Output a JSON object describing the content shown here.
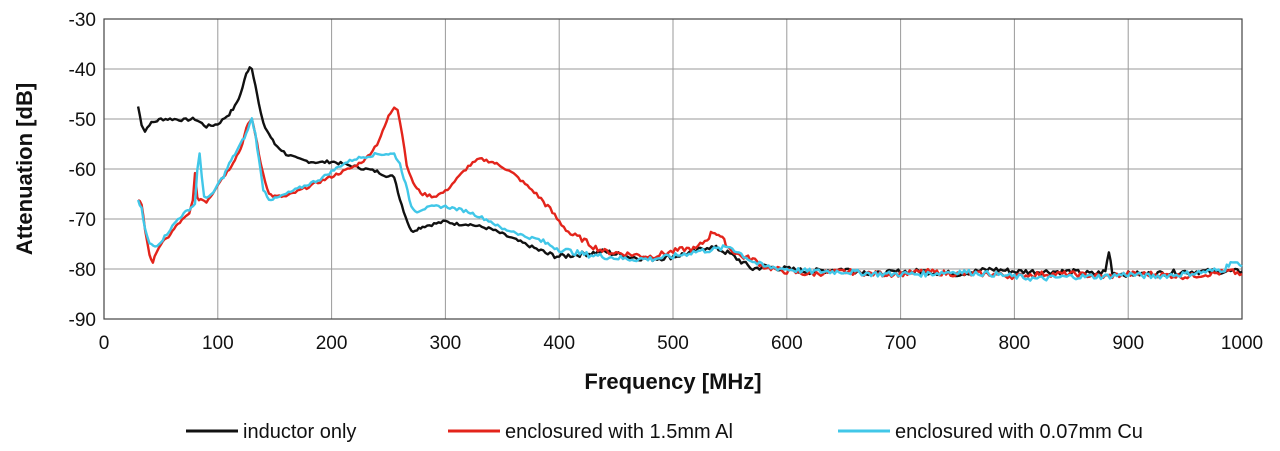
{
  "chart_data": {
    "type": "line",
    "title": "",
    "xlabel": "Frequency [MHz]",
    "ylabel": "Attenuation [dB]",
    "xlim": [
      0,
      1000
    ],
    "ylim": [
      -90,
      -30
    ],
    "xticks": [
      0,
      100,
      200,
      300,
      400,
      500,
      600,
      700,
      800,
      900,
      1000
    ],
    "yticks": [
      -30,
      -40,
      -50,
      -60,
      -70,
      -80,
      -90
    ],
    "grid": true,
    "legend_position": "bottom",
    "series": [
      {
        "name": "inductor only",
        "color": "#111111",
        "x": [
          30,
          33,
          36,
          40,
          45,
          50,
          60,
          70,
          80,
          90,
          100,
          110,
          115,
          120,
          125,
          128,
          130,
          133,
          136,
          140,
          145,
          150,
          160,
          170,
          180,
          190,
          200,
          210,
          220,
          230,
          240,
          250,
          255,
          260,
          265,
          270,
          275,
          280,
          290,
          300,
          310,
          320,
          330,
          340,
          350,
          360,
          370,
          380,
          390,
          400,
          420,
          440,
          460,
          480,
          500,
          510,
          520,
          530,
          540,
          550,
          560,
          570,
          580,
          600,
          620,
          650,
          680,
          700,
          720,
          750,
          780,
          800,
          820,
          850,
          870,
          880,
          883,
          886,
          890,
          900,
          920,
          950,
          970,
          1000
        ],
        "values": [
          -47.5,
          -51,
          -52.5,
          -51,
          -50.5,
          -50,
          -50,
          -50.2,
          -50,
          -51.5,
          -51,
          -49,
          -47.5,
          -45,
          -41,
          -39.5,
          -40,
          -43,
          -47,
          -51,
          -53,
          -55,
          -57,
          -58,
          -58.5,
          -58.7,
          -58.5,
          -59,
          -59.5,
          -60,
          -60.5,
          -61.5,
          -61.5,
          -66,
          -69.5,
          -72.5,
          -72,
          -71.5,
          -71,
          -70.5,
          -71,
          -71,
          -71.5,
          -72,
          -73,
          -74,
          -75,
          -76,
          -77,
          -77.5,
          -77,
          -76.5,
          -77.5,
          -78,
          -77.5,
          -77,
          -76.5,
          -75.5,
          -76,
          -77,
          -78.5,
          -80,
          -79.5,
          -80,
          -80.5,
          -80,
          -81,
          -80.5,
          -80.5,
          -81,
          -80,
          -80.5,
          -80.5,
          -80.5,
          -81,
          -80.5,
          -76.5,
          -80.5,
          -81,
          -81,
          -81,
          -80.5,
          -80.5,
          -80.5
        ]
      },
      {
        "name": "enclosured with 1.5mm Al",
        "color": "#e3241b",
        "x": [
          30,
          33,
          36,
          40,
          43,
          46,
          50,
          55,
          60,
          65,
          70,
          75,
          78,
          80,
          82,
          85,
          90,
          95,
          100,
          105,
          110,
          115,
          120,
          125,
          128,
          130,
          133,
          136,
          140,
          145,
          150,
          160,
          170,
          180,
          190,
          200,
          210,
          220,
          230,
          240,
          245,
          250,
          255,
          258,
          262,
          266,
          270,
          275,
          280,
          290,
          300,
          310,
          320,
          330,
          340,
          345,
          350,
          360,
          370,
          380,
          390,
          400,
          410,
          420,
          430,
          440,
          460,
          480,
          500,
          510,
          520,
          530,
          535,
          540,
          545,
          550,
          560,
          570,
          580,
          600,
          620,
          650,
          680,
          700,
          720,
          750,
          780,
          800,
          820,
          850,
          880,
          900,
          920,
          950,
          970,
          990,
          1000
        ],
        "values": [
          -66,
          -67,
          -72,
          -77,
          -79,
          -76.5,
          -75,
          -74,
          -72.5,
          -71,
          -70,
          -69,
          -66,
          -61,
          -66,
          -66,
          -66.5,
          -65,
          -63,
          -61.5,
          -60,
          -58,
          -56,
          -52,
          -50.5,
          -50,
          -53,
          -57,
          -61,
          -65,
          -65.5,
          -65.5,
          -64.5,
          -63.5,
          -62.5,
          -61.5,
          -60.5,
          -59.5,
          -58,
          -55,
          -52.5,
          -49.5,
          -47.5,
          -48,
          -53,
          -59,
          -62,
          -64,
          -65,
          -65.5,
          -64.5,
          -62,
          -59.5,
          -58,
          -58.5,
          -59,
          -59.5,
          -61,
          -63,
          -65,
          -67.5,
          -70.5,
          -73,
          -74,
          -75.5,
          -76.5,
          -77,
          -77.5,
          -76.5,
          -76,
          -76,
          -74,
          -72.5,
          -73,
          -74.5,
          -76,
          -77.5,
          -78,
          -79.5,
          -80.5,
          -81,
          -80.5,
          -81,
          -81,
          -80.5,
          -81,
          -81,
          -81.5,
          -81,
          -81,
          -81.5,
          -81,
          -81,
          -81.5,
          -81,
          -80.5,
          -81
        ]
      },
      {
        "name": "enclosured with 0.07mm Cu",
        "color": "#41c7e8",
        "x": [
          30,
          33,
          36,
          40,
          45,
          50,
          55,
          60,
          65,
          70,
          75,
          80,
          82,
          84,
          86,
          88,
          92,
          96,
          100,
          105,
          110,
          115,
          120,
          125,
          128,
          130,
          133,
          136,
          140,
          145,
          150,
          160,
          170,
          180,
          190,
          200,
          210,
          220,
          230,
          240,
          250,
          255,
          260,
          265,
          270,
          275,
          280,
          290,
          300,
          310,
          320,
          330,
          340,
          350,
          360,
          370,
          380,
          390,
          400,
          420,
          440,
          460,
          480,
          500,
          520,
          540,
          550,
          560,
          570,
          580,
          600,
          620,
          650,
          680,
          700,
          720,
          750,
          780,
          800,
          820,
          850,
          880,
          900,
          920,
          950,
          970,
          985,
          990,
          1000
        ],
        "values": [
          -66.5,
          -68,
          -72,
          -75,
          -75.5,
          -74.5,
          -73,
          -71.5,
          -70,
          -69,
          -68,
          -67,
          -60,
          -57,
          -62,
          -65.5,
          -65.5,
          -65,
          -63,
          -61.5,
          -59,
          -57,
          -55,
          -53,
          -51,
          -50,
          -53,
          -58,
          -64,
          -66,
          -66,
          -65,
          -64,
          -63,
          -62,
          -60.5,
          -59,
          -58,
          -57.5,
          -57,
          -57,
          -57,
          -59,
          -63,
          -67.5,
          -68.5,
          -68,
          -67.5,
          -67.5,
          -68,
          -68.5,
          -69.5,
          -70.5,
          -72,
          -72.5,
          -73.5,
          -74,
          -75,
          -76,
          -77,
          -77.5,
          -78,
          -78,
          -77.5,
          -76.5,
          -76,
          -75.5,
          -77,
          -78.5,
          -79.5,
          -80,
          -80.5,
          -80.5,
          -81,
          -81,
          -81,
          -80.5,
          -81,
          -81.5,
          -82,
          -81.5,
          -81.5,
          -81,
          -81.5,
          -81,
          -80.5,
          -80,
          -78.5,
          -79.5
        ]
      }
    ]
  }
}
